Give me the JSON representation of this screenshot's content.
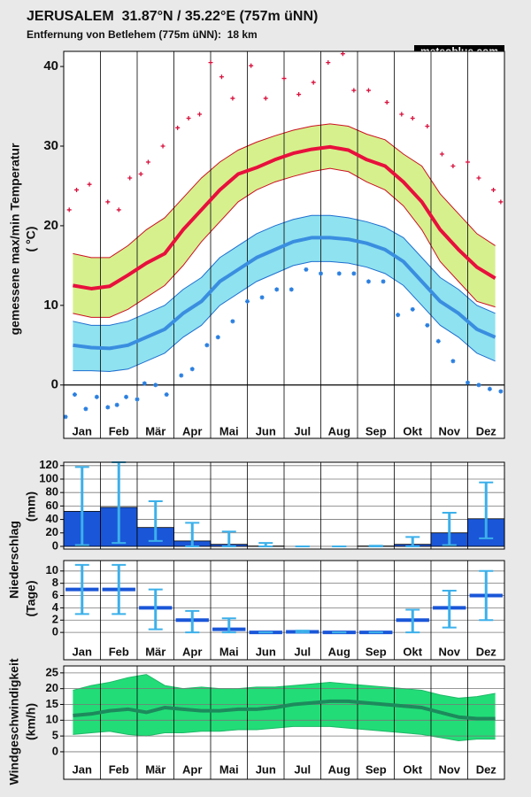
{
  "title": "JERUSALEM  31.87°N / 35.22°E (757m üNN)",
  "subtitle": "Entfernung von Betlehem (775m üNN):  18 km",
  "brand": "meteoblue.com",
  "chart_data": [
    {
      "type": "line",
      "ylabel": "gemessene max/min Temperatur",
      "yunit": "( °C)",
      "xlim": [
        0,
        12
      ],
      "ylim": [
        -6.7,
        41.9
      ],
      "yticks": [
        0,
        10,
        20,
        30,
        40
      ],
      "hline": 0,
      "xticks": [
        {
          "value": 0.5,
          "label": "Jan"
        },
        {
          "value": 1.5,
          "label": "Feb"
        },
        {
          "value": 2.5,
          "label": "Mär"
        },
        {
          "value": 3.5,
          "label": "Apr"
        },
        {
          "value": 4.5,
          "label": "Mai"
        },
        {
          "value": 5.5,
          "label": "Jun"
        },
        {
          "value": 6.5,
          "label": "Jul"
        },
        {
          "value": 7.5,
          "label": "Aug"
        },
        {
          "value": 8.5,
          "label": "Sep"
        },
        {
          "value": 9.5,
          "label": "Okt"
        },
        {
          "value": 10.5,
          "label": "Nov"
        },
        {
          "value": 11.5,
          "label": "Dez"
        }
      ],
      "x": [
        0.25,
        0.75,
        1.25,
        1.75,
        2.25,
        2.75,
        3.25,
        3.75,
        4.25,
        4.75,
        5.25,
        5.75,
        6.25,
        6.75,
        7.25,
        7.75,
        8.25,
        8.75,
        9.25,
        9.75,
        10.25,
        10.75,
        11.25,
        11.75
      ],
      "bands": [
        {
          "color": "#d6f08e",
          "edge": "#cc1020",
          "upper": [
            16.5,
            16,
            16,
            17.5,
            19.5,
            21,
            23.5,
            26,
            28,
            29.5,
            30.5,
            31.3,
            32,
            32.5,
            32.8,
            32.5,
            31.5,
            30.8,
            29,
            27.5,
            24,
            21.5,
            19,
            17.5
          ],
          "lower": [
            9,
            8.5,
            8.5,
            9.5,
            11,
            12.5,
            15,
            18,
            20.5,
            23,
            24.5,
            25.5,
            26.2,
            26.8,
            27.2,
            26.8,
            25.5,
            24.5,
            22.5,
            19.5,
            15.5,
            13,
            10.5,
            9.8
          ]
        },
        {
          "color": "#8fe2ef",
          "edge": "#1f6fd0",
          "upper": [
            8,
            7.5,
            7.5,
            8,
            9,
            10,
            12,
            13.5,
            16,
            17.5,
            19,
            20,
            20.8,
            21.3,
            21.3,
            21,
            20.5,
            19.8,
            18.5,
            16,
            13.5,
            12,
            10,
            9
          ],
          "lower": [
            1.8,
            1.8,
            1.7,
            2,
            3,
            4,
            6,
            7.5,
            10,
            11.5,
            13,
            14,
            15,
            15.5,
            15.5,
            15.3,
            14.8,
            14,
            12.5,
            10,
            7.5,
            6,
            4,
            3
          ]
        }
      ],
      "lines": [
        {
          "color": "#e8103c",
          "values": [
            12.5,
            12.1,
            12.4,
            13.8,
            15.3,
            16.5,
            19.5,
            22,
            24.5,
            26.5,
            27.3,
            28.3,
            29.1,
            29.6,
            29.9,
            29.5,
            28.3,
            27.5,
            25.5,
            23,
            19.5,
            17,
            14.8,
            13.4
          ]
        },
        {
          "color": "#3a8ee0",
          "values": [
            5,
            4.7,
            4.6,
            5,
            6,
            7,
            9,
            10.5,
            13,
            14.5,
            16,
            17,
            18,
            18.5,
            18.5,
            18.3,
            17.8,
            17,
            15.5,
            13,
            10.5,
            9,
            7,
            6
          ]
        }
      ],
      "points": [
        {
          "color": "#d8103c",
          "marker": "plus",
          "x": [
            0.15,
            0.35,
            0.7,
            1.2,
            1.5,
            1.8,
            2.1,
            2.3,
            2.7,
            3.1,
            3.4,
            3.7,
            4.0,
            4.3,
            4.6,
            5.1,
            5.5,
            6.0,
            6.4,
            6.8,
            7.2,
            7.6,
            7.9,
            8.3,
            8.8,
            9.2,
            9.5,
            9.9,
            10.3,
            10.6,
            11.0,
            11.3,
            11.7,
            11.9
          ],
          "y": [
            22,
            24.5,
            25.2,
            23,
            22,
            26,
            26.5,
            28,
            30,
            32.3,
            33.5,
            34,
            40.5,
            38.7,
            36,
            40.1,
            36,
            38.5,
            36.5,
            38,
            40.5,
            41.6,
            37,
            37,
            35.5,
            34,
            33.5,
            32.5,
            29,
            27.5,
            28,
            26,
            24.5,
            23
          ]
        },
        {
          "color": "#2a7fe0",
          "marker": "star",
          "x": [
            0.05,
            0.3,
            0.6,
            0.9,
            1.2,
            1.45,
            1.7,
            2.0,
            2.2,
            2.5,
            2.8,
            3.2,
            3.5,
            3.9,
            4.2,
            4.6,
            5.0,
            5.4,
            5.8,
            6.2,
            6.6,
            7.0,
            7.5,
            7.9,
            8.3,
            8.7,
            9.1,
            9.5,
            9.9,
            10.2,
            10.6,
            11.0,
            11.3,
            11.6,
            11.9
          ],
          "y": [
            -4,
            -1.2,
            -3,
            -1.5,
            -2.8,
            -2.5,
            -1.5,
            -1.8,
            0.2,
            0,
            -1.2,
            1.2,
            2,
            5,
            6,
            8,
            10.5,
            11,
            12,
            12,
            14.5,
            14,
            14,
            14,
            13,
            13,
            8.8,
            9.5,
            7.5,
            5.5,
            3,
            0.3,
            0,
            -0.5,
            -0.8
          ]
        }
      ]
    },
    {
      "type": "bar",
      "ylabel": "Niederschlag",
      "yunit": "(mm)",
      "xlim": [
        0,
        12
      ],
      "ylim": [
        -4,
        125
      ],
      "yticks": [
        0,
        20,
        40,
        60,
        80,
        100,
        120
      ],
      "grid": true,
      "x": [
        0.5,
        1.5,
        2.5,
        3.5,
        4.5,
        5.5,
        6.5,
        7.5,
        8.5,
        9.5,
        10.5,
        11.5
      ],
      "values": [
        52,
        58,
        28,
        8,
        3,
        0.5,
        0,
        0,
        0.5,
        3,
        20,
        41
      ],
      "low": [
        2,
        5,
        8,
        0,
        0,
        0,
        0,
        0,
        0,
        0,
        2,
        12
      ],
      "high": [
        118,
        125,
        67,
        35,
        22,
        5,
        0,
        0,
        1,
        14,
        50,
        95
      ],
      "color": "#1a56d8",
      "error_color": "#3cb0ea"
    },
    {
      "type": "level",
      "yunit": "(Tage)",
      "xlim": [
        0,
        12
      ],
      "ylim": [
        -0.7,
        11.7
      ],
      "yticks": [
        0,
        2,
        4,
        6,
        8,
        10
      ],
      "grid": true,
      "xticks": [
        {
          "value": 0.5,
          "label": "Jan"
        },
        {
          "value": 1.5,
          "label": "Feb"
        },
        {
          "value": 2.5,
          "label": "Mär"
        },
        {
          "value": 3.5,
          "label": "Apr"
        },
        {
          "value": 4.5,
          "label": "Mai"
        },
        {
          "value": 5.5,
          "label": "Jun"
        },
        {
          "value": 6.5,
          "label": "Jul"
        },
        {
          "value": 7.5,
          "label": "Aug"
        },
        {
          "value": 8.5,
          "label": "Sep"
        },
        {
          "value": 9.5,
          "label": "Okt"
        },
        {
          "value": 10.5,
          "label": "Nov"
        },
        {
          "value": 11.5,
          "label": "Dez"
        }
      ],
      "x": [
        0.5,
        1.5,
        2.5,
        3.5,
        4.5,
        5.5,
        6.5,
        7.5,
        8.5,
        9.5,
        10.5,
        11.5
      ],
      "values": [
        7,
        7,
        4,
        2,
        0.5,
        0,
        0.1,
        0,
        0,
        2,
        4,
        6
      ],
      "low": [
        3,
        3,
        0.5,
        0,
        0,
        0,
        0,
        0,
        0,
        0,
        0.8,
        2
      ],
      "high": [
        11,
        11,
        7,
        3.5,
        2.3,
        0,
        0.3,
        0,
        0,
        3.7,
        6.8,
        10
      ],
      "color": "#1a56d8",
      "error_color": "#3cb0ea"
    },
    {
      "type": "line",
      "ylabel": "Windgeschwindigkeit",
      "yunit": "(km/h)",
      "xlim": [
        0,
        12
      ],
      "ylim": [
        -1.7,
        27.2
      ],
      "yticks": [
        0,
        5,
        10,
        15,
        20,
        25
      ],
      "grid": true,
      "xticks": [
        {
          "value": 0.5,
          "label": "Jan"
        },
        {
          "value": 1.5,
          "label": "Feb"
        },
        {
          "value": 2.5,
          "label": "Mär"
        },
        {
          "value": 3.5,
          "label": "Apr"
        },
        {
          "value": 4.5,
          "label": "Mai"
        },
        {
          "value": 5.5,
          "label": "Jun"
        },
        {
          "value": 6.5,
          "label": "Jul"
        },
        {
          "value": 7.5,
          "label": "Aug"
        },
        {
          "value": 8.5,
          "label": "Sep"
        },
        {
          "value": 9.5,
          "label": "Okt"
        },
        {
          "value": 10.5,
          "label": "Nov"
        },
        {
          "value": 11.5,
          "label": "Dez"
        }
      ],
      "x": [
        0.25,
        0.75,
        1.25,
        1.75,
        2.25,
        2.75,
        3.25,
        3.75,
        4.25,
        4.75,
        5.25,
        5.75,
        6.25,
        6.75,
        7.25,
        7.75,
        8.25,
        8.75,
        9.25,
        9.75,
        10.25,
        10.75,
        11.25,
        11.75
      ],
      "bands": [
        {
          "color": "#22dd77",
          "edge": "#1fb868",
          "upper": [
            19.5,
            21,
            22,
            23.5,
            24.5,
            21,
            20,
            20.5,
            20,
            20,
            20.5,
            20.5,
            21,
            21.5,
            22,
            21.5,
            21,
            20.5,
            20,
            19.5,
            18,
            17,
            17.5,
            18.5
          ],
          "lower": [
            5.5,
            6,
            6.5,
            5.5,
            5,
            6,
            6,
            6.5,
            6.5,
            7,
            7,
            7.5,
            8,
            8,
            8,
            7.5,
            7,
            6.5,
            6,
            5.5,
            4.5,
            3.5,
            4,
            4
          ]
        }
      ],
      "lines": [
        {
          "color": "#1d8a5c",
          "values": [
            11.5,
            12,
            13,
            13.5,
            12.5,
            14,
            13.5,
            13,
            13,
            13.5,
            13.5,
            14,
            15,
            15.5,
            16,
            16,
            15.5,
            15,
            14.5,
            14,
            12.5,
            11,
            10.5,
            10.5
          ]
        }
      ]
    }
  ]
}
